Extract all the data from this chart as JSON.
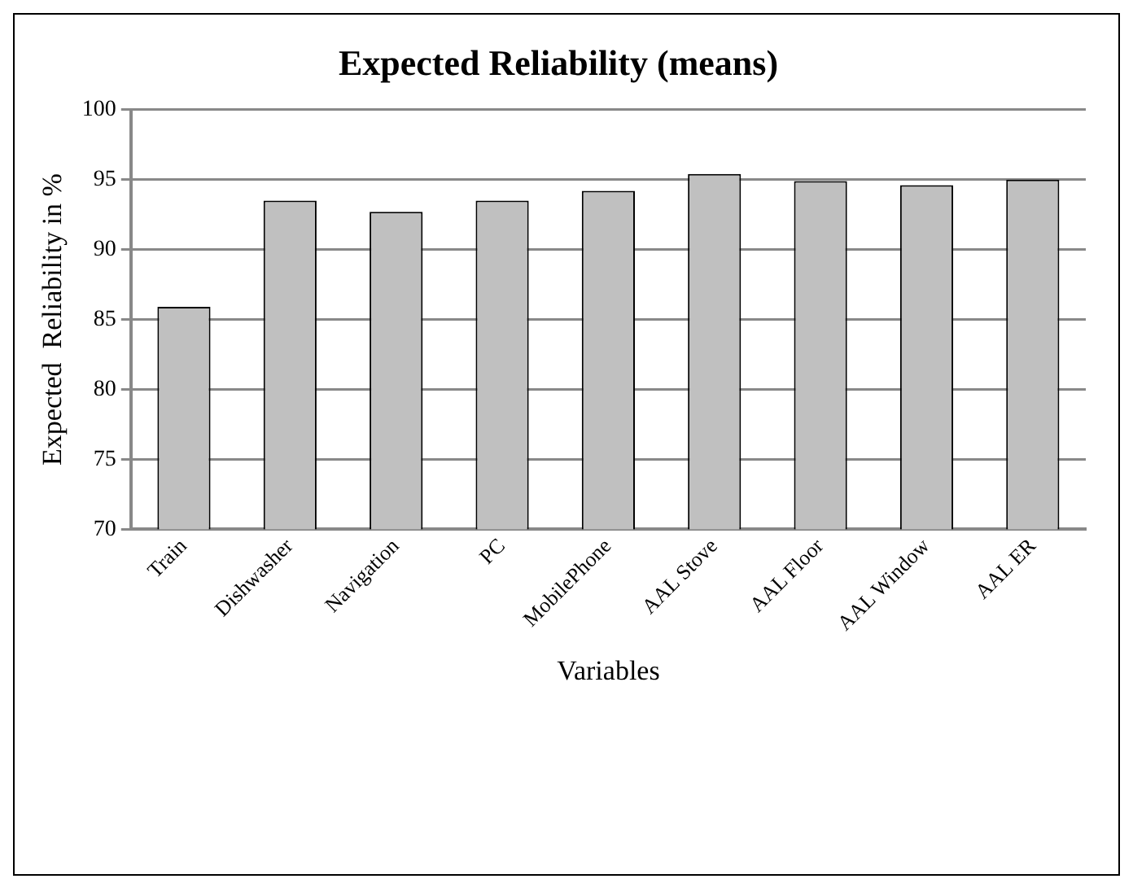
{
  "chart_data": {
    "type": "bar",
    "title": "Expected Reliability (means)",
    "xlabel": "Variables",
    "ylabel": "Expected  Reliability in %",
    "categories": [
      "Train",
      "Dishwasher",
      "Navigation",
      "PC",
      "MobilePhone",
      "AAL Stove",
      "AAL Floor",
      "AAL Window",
      "AAL ER"
    ],
    "values": [
      85.9,
      93.5,
      92.7,
      93.5,
      94.2,
      95.4,
      94.9,
      94.6,
      95.0
    ],
    "color": "#c0c0c0",
    "ylim": [
      70,
      100
    ],
    "yticks": [
      70,
      75,
      80,
      85,
      90,
      95,
      100
    ],
    "grid": "y",
    "legend": false
  }
}
